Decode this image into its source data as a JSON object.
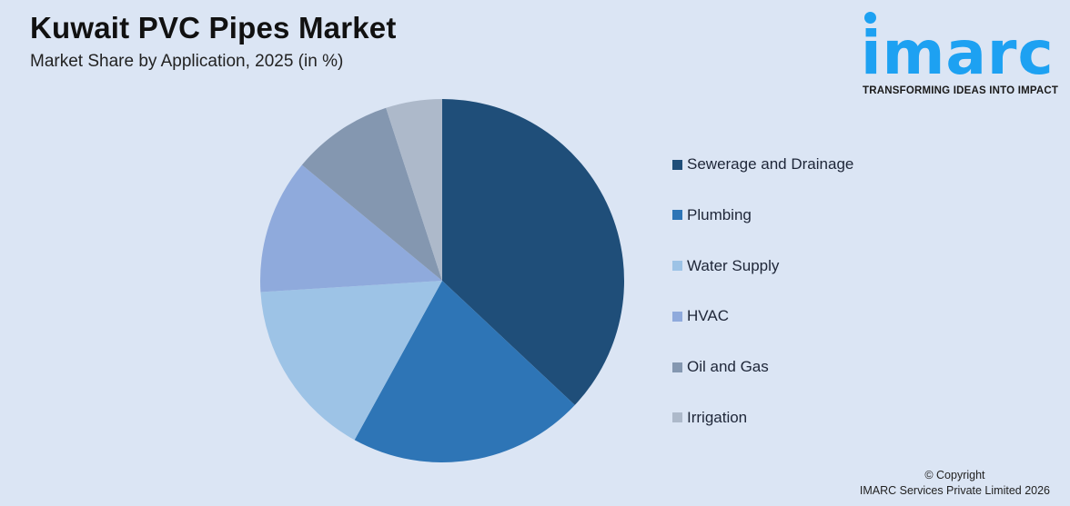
{
  "header": {
    "title": "Kuwait PVC Pipes Market",
    "subtitle": "Market Share by Application, 2025 (in %)"
  },
  "logo": {
    "wordmark": "imarc",
    "tagline": "TRANSFORMING IDEAS INTO IMPACT",
    "color": "#1da1f2"
  },
  "legend": {
    "items": [
      {
        "label": "Sewerage and Drainage",
        "color": "#1f4e79"
      },
      {
        "label": "Plumbing",
        "color": "#2e75b6"
      },
      {
        "label": "Water Supply",
        "color": "#9dc3e6"
      },
      {
        "label": "HVAC",
        "color": "#8faadc"
      },
      {
        "label": "Oil and Gas",
        "color": "#8497b0"
      },
      {
        "label": "Irrigation",
        "color": "#adb9ca"
      }
    ]
  },
  "footer": {
    "copyright_line1": "© Copyright",
    "copyright_line2": "IMARC Services Private Limited 2026"
  },
  "chart_data": {
    "type": "pie",
    "title": "Kuwait PVC Pipes Market",
    "subtitle": "Market Share by Application, 2025 (in %)",
    "categories": [
      "Sewerage and Drainage",
      "Plumbing",
      "Water Supply",
      "HVAC",
      "Oil and Gas",
      "Irrigation"
    ],
    "values": [
      37,
      21,
      16,
      12,
      9,
      5
    ],
    "colors": [
      "#1f4e79",
      "#2e75b6",
      "#9dc3e6",
      "#8faadc",
      "#8497b0",
      "#adb9ca"
    ],
    "start_angle": "12 o'clock",
    "direction": "clockwise",
    "legend_position": "right",
    "data_labels": false
  }
}
